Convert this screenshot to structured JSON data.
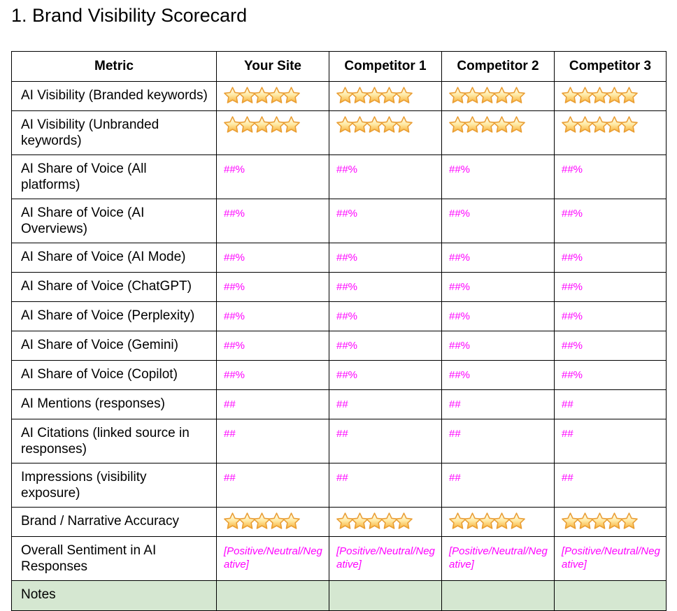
{
  "page": {
    "title": "1. Brand Visibility Scorecard"
  },
  "colors": {
    "value_text": "#ff00ff",
    "notes_row_bg": "#d5e7d1",
    "table_border": "#000000",
    "star_outline": "#e99d33",
    "star_top": "#fffef2",
    "star_mid": "#ffe9a3",
    "star_bottom": "#f7ae33"
  },
  "table": {
    "columns": [
      {
        "label": "Metric"
      },
      {
        "label": "Your Site"
      },
      {
        "label": "Competitor 1"
      },
      {
        "label": "Competitor 2"
      },
      {
        "label": "Competitor 3"
      }
    ],
    "rows": [
      {
        "metric": "AI Visibility (Branded keywords)",
        "type": "stars",
        "values": [
          5,
          5,
          5,
          5
        ]
      },
      {
        "metric": "AI Visibility (Unbranded keywords)",
        "type": "stars",
        "values": [
          5,
          5,
          5,
          5
        ]
      },
      {
        "metric": "AI Share of Voice (All platforms)",
        "type": "value",
        "values": [
          "##%",
          "##%",
          "##%",
          "##%"
        ]
      },
      {
        "metric": "AI Share of Voice (AI Overviews)",
        "type": "value",
        "values": [
          "##%",
          "##%",
          "##%",
          "##%"
        ]
      },
      {
        "metric": "AI Share of Voice (AI Mode)",
        "type": "value",
        "values": [
          "##%",
          "##%",
          "##%",
          "##%"
        ]
      },
      {
        "metric": "AI Share of Voice (ChatGPT)",
        "type": "value",
        "values": [
          "##%",
          "##%",
          "##%",
          "##%"
        ]
      },
      {
        "metric": "AI Share of Voice (Perplexity)",
        "type": "value",
        "values": [
          "##%",
          "##%",
          "##%",
          "##%"
        ]
      },
      {
        "metric": "AI Share of Voice (Gemini)",
        "type": "value",
        "values": [
          "##%",
          "##%",
          "##%",
          "##%"
        ]
      },
      {
        "metric": "AI Share of Voice (Copilot)",
        "type": "value",
        "values": [
          "##%",
          "##%",
          "##%",
          "##%"
        ]
      },
      {
        "metric": "AI Mentions (responses)",
        "type": "value",
        "values": [
          "##",
          "##",
          "##",
          "##"
        ]
      },
      {
        "metric": "AI Citations (linked source in responses)",
        "type": "value",
        "values": [
          "##",
          "##",
          "##",
          "##"
        ]
      },
      {
        "metric": "Impressions (visibility exposure)",
        "type": "value",
        "values": [
          "##",
          "##",
          "##",
          "##"
        ]
      },
      {
        "metric": "Brand / Narrative Accuracy",
        "type": "stars",
        "values": [
          5,
          5,
          5,
          5
        ]
      },
      {
        "metric": "Overall Sentiment in AI Responses",
        "type": "value-italic",
        "values": [
          "[Positive/Neutral/Negative]",
          "[Positive/Neutral/Negative]",
          "[Positive/Neutral/Negative]",
          "[Positive/Neutral/Negative]"
        ]
      },
      {
        "metric": "Notes",
        "type": "notes",
        "values": [
          "",
          "",
          "",
          ""
        ]
      }
    ]
  }
}
